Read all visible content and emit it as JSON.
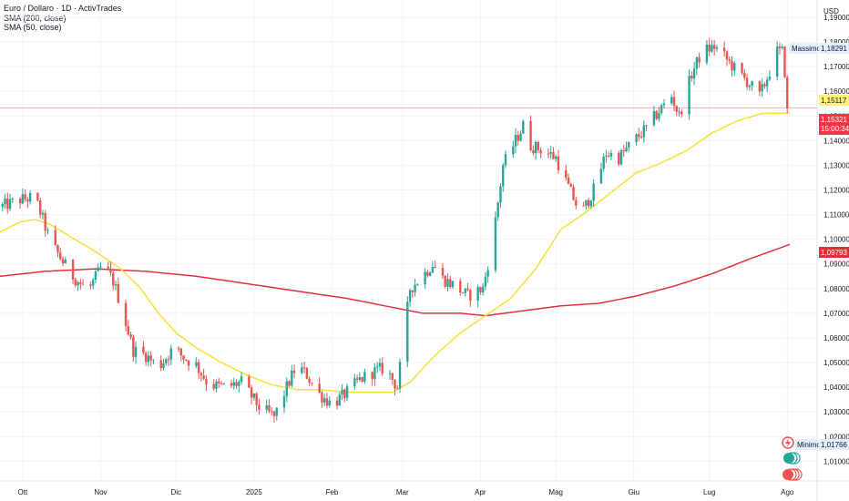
{
  "legend": {
    "title": "Euro / Dollaro · 1D · ActivTrades",
    "sma200": "SMA (200, close)",
    "sma50": "SMA (50, close)"
  },
  "currency": "USD",
  "colors": {
    "up": "#26a69a",
    "down": "#ef5350",
    "sma50": "#f7e03c",
    "sma200": "#e0313a",
    "last_price": "#f23645",
    "sma50_label_bg": "#fff176",
    "grid": "#f0f3fa"
  },
  "labels": {
    "max_caption": "Massimo",
    "max_value": "1,18291",
    "min_caption": "Minimo",
    "min_value": "1,01766",
    "sma50_value": "1,15117",
    "last_value": "1,15321",
    "countdown": "15:00:34",
    "sma200_value": "1,09793"
  },
  "chart_data": {
    "type": "candlestick",
    "title": "Euro / Dollaro · 1D · ActivTrades",
    "ylim": [
      1.002,
      1.197
    ],
    "y_ticks": [
      "1,19000",
      "1,18000",
      "1,17000",
      "1,16000",
      "1,15000",
      "1,14000",
      "1,13000",
      "1,12000",
      "1,11000",
      "1,10000",
      "1,09000",
      "1,08000",
      "1,07000",
      "1,06000",
      "1,05000",
      "1,04000",
      "1,03000",
      "1,02000",
      "1,01000"
    ],
    "x_ticks": [
      "Ott",
      "Nov",
      "Dic",
      "2025",
      "Feb",
      "Mar",
      "Apr",
      "Mag",
      "Giu",
      "Lug",
      "Ago"
    ],
    "x_tick_days": [
      1,
      32,
      62,
      93,
      124,
      152,
      183,
      213,
      244,
      274,
      305
    ],
    "first_day": -8,
    "last_day": 312,
    "anchors": [
      [
        -8,
        1.113
      ],
      [
        0,
        1.116
      ],
      [
        6,
        1.117
      ],
      [
        12,
        1.099
      ],
      [
        20,
        1.086
      ],
      [
        27,
        1.079
      ],
      [
        33,
        1.09
      ],
      [
        37,
        1.083
      ],
      [
        41,
        1.07
      ],
      [
        45,
        1.055
      ],
      [
        50,
        1.053
      ],
      [
        55,
        1.048
      ],
      [
        61,
        1.056
      ],
      [
        65,
        1.052
      ],
      [
        70,
        1.049
      ],
      [
        75,
        1.041
      ],
      [
        82,
        1.04
      ],
      [
        88,
        1.042
      ],
      [
        95,
        1.032
      ],
      [
        101,
        1.028
      ],
      [
        106,
        1.04
      ],
      [
        110,
        1.049
      ],
      [
        114,
        1.045
      ],
      [
        118,
        1.038
      ],
      [
        124,
        1.033
      ],
      [
        130,
        1.038
      ],
      [
        135,
        1.043
      ],
      [
        140,
        1.046
      ],
      [
        145,
        1.048
      ],
      [
        150,
        1.04
      ],
      [
        155,
        1.08
      ],
      [
        160,
        1.085
      ],
      [
        164,
        1.09
      ],
      [
        168,
        1.084
      ],
      [
        173,
        1.081
      ],
      [
        178,
        1.077
      ],
      [
        184,
        1.08
      ],
      [
        188,
        1.1
      ],
      [
        192,
        1.13
      ],
      [
        197,
        1.14
      ],
      [
        200,
        1.146
      ],
      [
        203,
        1.138
      ],
      [
        208,
        1.136
      ],
      [
        213,
        1.133
      ],
      [
        218,
        1.121
      ],
      [
        223,
        1.11
      ],
      [
        228,
        1.12
      ],
      [
        233,
        1.135
      ],
      [
        238,
        1.133
      ],
      [
        244,
        1.14
      ],
      [
        249,
        1.145
      ],
      [
        254,
        1.152
      ],
      [
        259,
        1.158
      ],
      [
        262,
        1.15
      ],
      [
        267,
        1.167
      ],
      [
        271,
        1.176
      ],
      [
        276,
        1.178
      ],
      [
        280,
        1.174
      ],
      [
        285,
        1.168
      ],
      [
        290,
        1.163
      ],
      [
        294,
        1.158
      ],
      [
        298,
        1.168
      ],
      [
        301,
        1.176
      ],
      [
        303,
        1.176
      ],
      [
        305,
        1.16
      ],
      [
        306,
        1.1532
      ]
    ],
    "sma50": [
      [
        -8,
        1.103
      ],
      [
        0,
        1.107
      ],
      [
        6,
        1.108
      ],
      [
        12,
        1.106
      ],
      [
        20,
        1.101
      ],
      [
        30,
        1.095
      ],
      [
        40,
        1.088
      ],
      [
        48,
        1.08
      ],
      [
        55,
        1.07
      ],
      [
        62,
        1.062
      ],
      [
        70,
        1.056
      ],
      [
        80,
        1.05
      ],
      [
        90,
        1.045
      ],
      [
        100,
        1.041
      ],
      [
        110,
        1.039
      ],
      [
        120,
        1.039
      ],
      [
        130,
        1.038
      ],
      [
        140,
        1.038
      ],
      [
        148,
        1.038
      ],
      [
        155,
        1.042
      ],
      [
        165,
        1.053
      ],
      [
        175,
        1.062
      ],
      [
        185,
        1.069
      ],
      [
        195,
        1.076
      ],
      [
        205,
        1.088
      ],
      [
        215,
        1.104
      ],
      [
        225,
        1.111
      ],
      [
        235,
        1.119
      ],
      [
        245,
        1.127
      ],
      [
        255,
        1.131
      ],
      [
        265,
        1.136
      ],
      [
        275,
        1.143
      ],
      [
        285,
        1.148
      ],
      [
        295,
        1.151
      ],
      [
        306,
        1.1512
      ]
    ],
    "sma200": [
      [
        -8,
        1.085
      ],
      [
        10,
        1.087
      ],
      [
        30,
        1.088
      ],
      [
        50,
        1.087
      ],
      [
        70,
        1.085
      ],
      [
        90,
        1.082
      ],
      [
        110,
        1.079
      ],
      [
        130,
        1.076
      ],
      [
        150,
        1.072
      ],
      [
        160,
        1.07
      ],
      [
        175,
        1.07
      ],
      [
        185,
        1.069
      ],
      [
        200,
        1.071
      ],
      [
        215,
        1.073
      ],
      [
        230,
        1.074
      ],
      [
        245,
        1.077
      ],
      [
        260,
        1.081
      ],
      [
        275,
        1.086
      ],
      [
        290,
        1.092
      ],
      [
        306,
        1.0979
      ]
    ],
    "series": [
      {
        "name": "SMA (200, close)"
      },
      {
        "name": "SMA (50, close)"
      }
    ],
    "max": 1.18291,
    "min": 1.01766,
    "last": 1.15321,
    "sma50_last": 1.15117,
    "sma200_last": 1.09793
  }
}
